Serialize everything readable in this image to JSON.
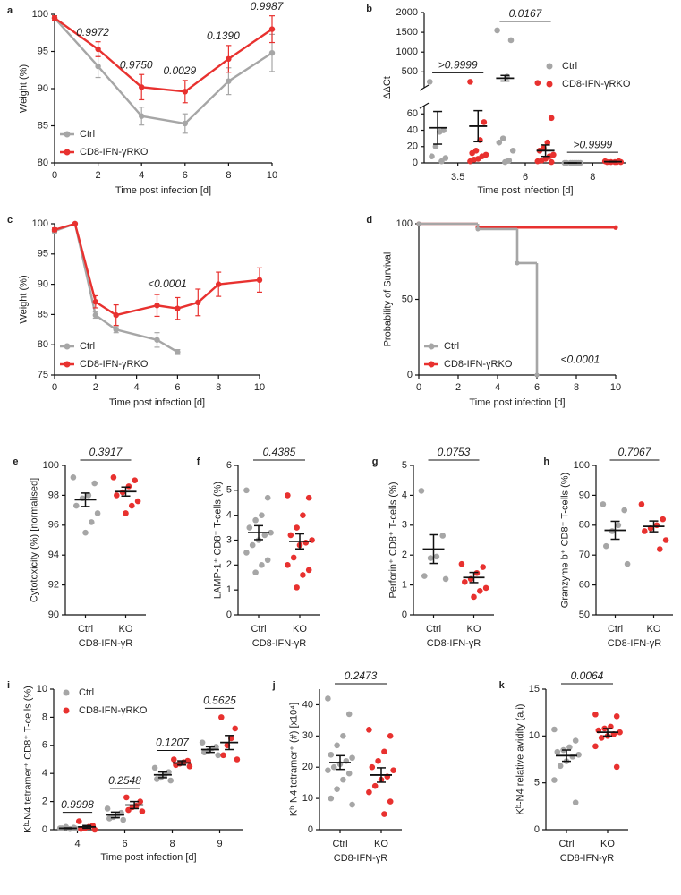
{
  "chart_data": [
    {
      "type": "line",
      "label": "a",
      "xlabel": "Time post infection [d]",
      "ylabel": "Weight (%)",
      "xlim": [
        0,
        10
      ],
      "ylim": [
        80,
        100
      ],
      "xticks": [
        0,
        2,
        4,
        6,
        8,
        10
      ],
      "yticks": [
        80,
        85,
        90,
        95,
        100
      ],
      "legend": "lower left",
      "series": [
        {
          "name": "Ctrl",
          "color": "#a6a6a6",
          "x": [
            0,
            2,
            4,
            6,
            8,
            10
          ],
          "values": [
            99.5,
            93,
            86.3,
            85.3,
            91,
            94.8
          ],
          "errors": [
            0.3,
            1.5,
            1.2,
            1.3,
            1.8,
            2.5
          ]
        },
        {
          "name": "CD8-IFN-γRKO",
          "color": "#e8312f",
          "x": [
            0,
            2,
            4,
            6,
            8,
            10
          ],
          "values": [
            99.5,
            95.3,
            90.2,
            89.6,
            94,
            98
          ],
          "errors": [
            0.3,
            1,
            1.7,
            1.5,
            1.8,
            1.8
          ]
        }
      ],
      "annotations": [
        {
          "x": 2,
          "text": "0.9972"
        },
        {
          "x": 4,
          "text": "0.9750"
        },
        {
          "x": 6,
          "text": "0.0029"
        },
        {
          "x": 8,
          "text": "0.1390"
        },
        {
          "x": 10,
          "text": "0.9987"
        }
      ]
    },
    {
      "type": "dotplot",
      "label": "b",
      "xlabel": "Time post infection [d]",
      "ylabel": "ΔΔCt",
      "categories": [
        "3.5",
        "6",
        "8"
      ],
      "ylim": [
        0,
        2000
      ],
      "ybreak": [
        70,
        100
      ],
      "yticks": [
        0,
        20,
        40,
        60,
        500,
        1000,
        1500,
        2000
      ],
      "legend": "right",
      "series": [
        {
          "name": "Ctrl",
          "color": "#a6a6a6",
          "points": [
            [
              250,
              40,
              38,
              20,
              8,
              6,
              2
            ],
            [
              1550,
              1300,
              380,
              30,
              25,
              15,
              3,
              1
            ],
            [
              0,
              0,
              0,
              0,
              0,
              0,
              0,
              0
            ]
          ],
          "means": [
            43,
            340,
            0
          ],
          "sems": [
            20,
            70,
            0
          ]
        },
        {
          "name": "CD8-IFN-γRKO",
          "color": "#e8312f",
          "points": [
            [
              250,
              50,
              28,
              15,
              12,
              10,
              8,
              5,
              4,
              2
            ],
            [
              220,
              55,
              25,
              18,
              15,
              10,
              8,
              5,
              3,
              2,
              1
            ],
            [
              2,
              2,
              1,
              1,
              1,
              1,
              1
            ]
          ],
          "means": [
            45,
            15,
            1.5
          ],
          "sems": [
            19,
            7,
            0.3
          ]
        }
      ],
      "pvalues": [
        ">0.9999",
        "0.0167",
        ">0.9999"
      ]
    },
    {
      "type": "line",
      "label": "c",
      "xlabel": "Time post infection [d]",
      "ylabel": "Weight (%)",
      "xlim": [
        0,
        10
      ],
      "ylim": [
        75,
        100
      ],
      "xticks": [
        0,
        2,
        4,
        6,
        8,
        10
      ],
      "yticks": [
        75,
        80,
        85,
        90,
        95,
        100
      ],
      "legend": "lower left",
      "series": [
        {
          "name": "Ctrl",
          "color": "#a6a6a6",
          "x": [
            0,
            1,
            2,
            3,
            5,
            6
          ],
          "values": [
            98.8,
            100,
            84.9,
            82.5,
            80.8,
            78.8
          ],
          "errors": [
            0.3,
            0.1,
            0.5,
            0.5,
            1.2,
            0.4
          ]
        },
        {
          "name": "CD8-IFN-γRKO",
          "color": "#e8312f",
          "x": [
            0,
            1,
            2,
            3,
            5,
            6,
            7,
            8,
            10
          ],
          "values": [
            99,
            100,
            87.1,
            84.9,
            86.5,
            86,
            87,
            90,
            90.7
          ],
          "errors": [
            0.3,
            0.1,
            1,
            1.7,
            1.8,
            1.8,
            2.2,
            2,
            2
          ]
        }
      ],
      "pvalue": "<0.0001"
    },
    {
      "type": "step",
      "label": "d",
      "xlabel": "Time post infection [d]",
      "ylabel": "Probability of Survival",
      "xlim": [
        0,
        10
      ],
      "ylim": [
        0,
        100
      ],
      "xticks": [
        0,
        2,
        4,
        6,
        8,
        10
      ],
      "yticks": [
        0,
        50,
        100
      ],
      "legend": "lower left",
      "series": [
        {
          "name": "Ctrl",
          "color": "#a6a6a6",
          "x": [
            0,
            3,
            5,
            6
          ],
          "values": [
            100,
            96.5,
            74,
            0
          ]
        },
        {
          "name": "CD8-IFN-γRKO",
          "color": "#e8312f",
          "x": [
            0,
            3,
            10
          ],
          "values": [
            100,
            97.5,
            97.5
          ]
        }
      ],
      "pvalue": "<0.0001"
    },
    {
      "type": "dotplot",
      "label": "e",
      "ylabel": "Cytotoxicity (%) [normalised]",
      "group_label": "CD8-IFN-γR",
      "categories": [
        "Ctrl",
        "KO"
      ],
      "colors": [
        "#a6a6a6",
        "#e8312f"
      ],
      "ylim": [
        90,
        100
      ],
      "yticks": [
        90,
        92,
        94,
        96,
        98,
        100
      ],
      "points": [
        [
          99.2,
          98.8,
          98,
          97.8,
          97.3,
          96.8,
          96.2,
          95.5
        ],
        [
          99.2,
          99,
          98.6,
          98.2,
          98,
          97.6,
          97.3,
          96.8
        ]
      ],
      "means": [
        97.7,
        98.25
      ],
      "sems": [
        0.45,
        0.3
      ],
      "pvalue": "0.3917"
    },
    {
      "type": "dotplot",
      "label": "f",
      "ylabel": "LAMP-1⁺ CD8⁺ T-cells (%)",
      "group_label": "CD8-IFN-γR",
      "categories": [
        "Ctrl",
        "KO"
      ],
      "colors": [
        "#a6a6a6",
        "#e8312f"
      ],
      "ylim": [
        0,
        6
      ],
      "yticks": [
        0,
        1,
        2,
        3,
        4,
        5,
        6
      ],
      "points": [
        [
          5.0,
          4.7,
          4.0,
          3.8,
          3.5,
          3.3,
          3.2,
          3.0,
          2.8,
          2.5,
          2.2,
          2.0,
          1.7
        ],
        [
          4.8,
          4.7,
          4.0,
          3.5,
          3.2,
          3.0,
          2.9,
          2.8,
          2.3,
          2.0,
          1.8,
          1.6,
          1.1
        ]
      ],
      "means": [
        3.3,
        2.95
      ],
      "sems": [
        0.28,
        0.3
      ],
      "pvalue": "0.4385"
    },
    {
      "type": "dotplot",
      "label": "g",
      "ylabel": "Perforin⁺ CD8⁺ T-cells (%)",
      "group_label": "CD8-IFN-γR",
      "categories": [
        "Ctrl",
        "KO"
      ],
      "colors": [
        "#a6a6a6",
        "#e8312f"
      ],
      "ylim": [
        0,
        5
      ],
      "yticks": [
        0,
        1,
        2,
        3,
        4,
        5
      ],
      "points": [
        [
          4.15,
          2.65,
          1.95,
          1.9,
          1.3,
          1.2
        ],
        [
          1.7,
          1.6,
          1.4,
          1.2,
          1.1,
          0.9,
          0.8,
          0.6
        ]
      ],
      "means": [
        2.2,
        1.25
      ],
      "sems": [
        0.48,
        0.17
      ],
      "pvalue": "0.0753"
    },
    {
      "type": "dotplot",
      "label": "h",
      "ylabel": "Granzyme b⁺ CD8⁺ T-cells (%)",
      "group_label": "CD8-IFN-γR",
      "categories": [
        "Ctrl",
        "KO"
      ],
      "colors": [
        "#a6a6a6",
        "#e8312f"
      ],
      "ylim": [
        50,
        100
      ],
      "yticks": [
        50,
        60,
        70,
        80,
        90,
        100
      ],
      "points": [
        [
          87,
          85,
          80,
          78,
          73,
          67
        ],
        [
          87,
          82,
          80,
          79,
          78,
          75,
          72
        ]
      ],
      "means": [
        78.3,
        79.6
      ],
      "sems": [
        3,
        1.8
      ],
      "pvalue": "0.7067"
    },
    {
      "type": "dotplot",
      "label": "i",
      "xlabel": "Time post infection [d]",
      "ylabel": "Kᵇ-N4 tetramer⁺ CD8⁺ T-cells (%)",
      "categories": [
        "4",
        "6",
        "8",
        "9"
      ],
      "ylim": [
        0,
        10
      ],
      "yticks": [
        0,
        2,
        4,
        6,
        8,
        10
      ],
      "legend": "upper left",
      "series": [
        {
          "name": "Ctrl",
          "color": "#a6a6a6",
          "points": [
            [
              0.1,
              0.15,
              0.05,
              0.2,
              0.1,
              0.08
            ],
            [
              1.5,
              1.2,
              1.0,
              0.9,
              0.8,
              0.7
            ],
            [
              4.4,
              4.1,
              3.9,
              3.7,
              3.6,
              3.5
            ],
            [
              6.2,
              5.9,
              5.8,
              5.6,
              5.5,
              5.3
            ]
          ],
          "means": [
            0.1,
            1.05,
            3.9,
            5.7
          ],
          "sems": [
            0.03,
            0.2,
            0.2,
            0.2
          ]
        },
        {
          "name": "CD8-IFN-γRKO",
          "color": "#e8312f",
          "points": [
            [
              0.6,
              0.3,
              0.2,
              0.1,
              0.05,
              0
            ],
            [
              2.3,
              2.0,
              1.7,
              1.6,
              1.4,
              1.3
            ],
            [
              5.0,
              4.9,
              4.8,
              4.7,
              4.6,
              4.5
            ],
            [
              8.0,
              7.2,
              6.5,
              6.0,
              5.3,
              5.0
            ]
          ],
          "means": [
            0.2,
            1.75,
            4.75,
            6.2
          ],
          "sems": [
            0.1,
            0.25,
            0.15,
            0.5
          ]
        }
      ],
      "pvalues": [
        "0.9998",
        "0.2548",
        "0.1207",
        "0.5625"
      ]
    },
    {
      "type": "dotplot",
      "label": "j",
      "ylabel": "Kᵇ-N4 tetramer⁺ (#) [x10⁴]",
      "group_label": "CD8-IFN-γR",
      "categories": [
        "Ctrl",
        "KO"
      ],
      "colors": [
        "#a6a6a6",
        "#e8312f"
      ],
      "ylim": [
        0,
        45
      ],
      "yticks": [
        0,
        10,
        20,
        30,
        40
      ],
      "points": [
        [
          42,
          37,
          30,
          27,
          24,
          23,
          22,
          21,
          20,
          19,
          18,
          16,
          13,
          10,
          8
        ],
        [
          32,
          30,
          25,
          22,
          20,
          19,
          17,
          16,
          14,
          12,
          9,
          5
        ]
      ],
      "means": [
        21.5,
        17.5
      ],
      "sems": [
        2.2,
        2.3
      ],
      "pvalue": "0.2473"
    },
    {
      "type": "dotplot",
      "label": "k",
      "ylabel": "Kᵇ-N4 relative avidity (a.i)",
      "group_label": "CD8-IFN-γR",
      "categories": [
        "Ctrl",
        "KO"
      ],
      "colors": [
        "#a6a6a6",
        "#e8312f"
      ],
      "ylim": [
        0,
        15
      ],
      "yticks": [
        0,
        5,
        10,
        15
      ],
      "points": [
        [
          10.7,
          9.5,
          8.8,
          8.5,
          8.3,
          8,
          7.8,
          7.3,
          6.8,
          5.3,
          2.9
        ],
        [
          12.3,
          12.1,
          11,
          10.8,
          10.6,
          10.4,
          10.2,
          10,
          9.8,
          8.9,
          6.7
        ]
      ],
      "means": [
        7.9,
        10.4
      ],
      "sems": [
        0.6,
        0.4
      ],
      "pvalue": "0.0064"
    }
  ]
}
